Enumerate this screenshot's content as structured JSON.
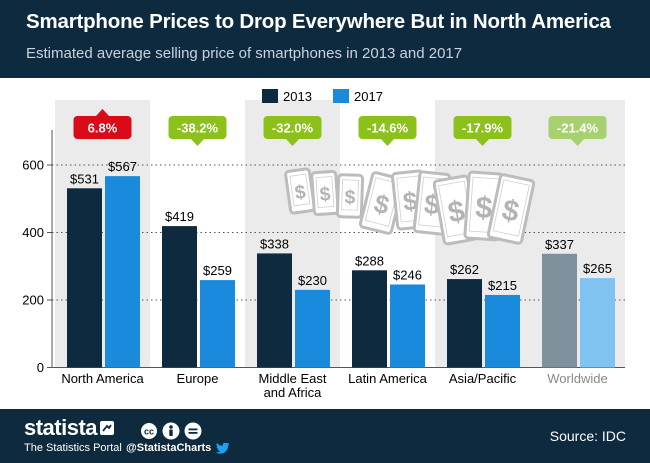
{
  "header": {
    "title": "Smartphone Prices to Drop Everywhere But in North America",
    "subtitle": "Estimated average selling price of smartphones in 2013 and 2017"
  },
  "chart_data": {
    "type": "bar",
    "categories": [
      "North America",
      "Europe",
      "Middle East and Africa",
      "Latin America",
      "Asia/Pacific",
      "Worldwide"
    ],
    "category_lines": [
      [
        "North America"
      ],
      [
        "Europe"
      ],
      [
        "Middle East",
        "and Africa"
      ],
      [
        "Latin America"
      ],
      [
        "Asia/Pacific"
      ],
      [
        "Worldwide"
      ]
    ],
    "series": [
      {
        "name": "2013",
        "values": [
          531,
          419,
          338,
          288,
          262,
          337
        ],
        "labels": [
          "$531",
          "$419",
          "$338",
          "$288",
          "$262",
          "$337"
        ],
        "color": "#0d2a3f",
        "worldwide_color": "#7f909d"
      },
      {
        "name": "2017",
        "values": [
          567,
          259,
          230,
          246,
          215,
          265
        ],
        "labels": [
          "$567",
          "$259",
          "$230",
          "$246",
          "$215",
          "$265"
        ],
        "color": "#1a8bdc",
        "worldwide_color": "#80c3f0"
      }
    ],
    "changes": [
      "6.8%",
      "-38.2%",
      "-32.0%",
      "-14.6%",
      "-17.9%",
      "-21.4%"
    ],
    "change_colors": [
      "#d90b19",
      "#8cc01a",
      "#8cc01a",
      "#8cc01a",
      "#8cc01a",
      "#a7d070"
    ],
    "yticks": [
      0,
      200,
      400,
      600
    ],
    "ylim": [
      0,
      700
    ],
    "grid": true,
    "legend_position": "top-center",
    "colors": {
      "header_bg": "#0d2a3f",
      "shade": "#ebebeb",
      "worldwide_label": "#888888",
      "text": "#000000"
    }
  },
  "footer": {
    "brand": "statista",
    "tagline": "The Statistics Portal",
    "handle": "@StatistaCharts",
    "source": "Source: IDC",
    "icons": [
      "brand-arrow-icon",
      "cc-icon",
      "attribution-icon",
      "no-derivatives-icon",
      "twitter-icon"
    ]
  },
  "illustration": {
    "phone_symbol": "$"
  }
}
